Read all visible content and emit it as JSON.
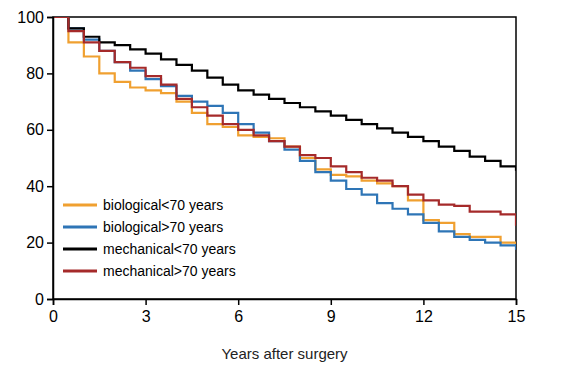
{
  "chart_data": {
    "type": "line",
    "x_label": "Years after surgery",
    "x": [
      0,
      0.5,
      1,
      1.5,
      2,
      2.5,
      3,
      3.5,
      4,
      4.5,
      5,
      5.5,
      6,
      6.5,
      7,
      7.5,
      8,
      8.5,
      9,
      9.5,
      10,
      10.5,
      11,
      11.5,
      12,
      12.5,
      13,
      13.5,
      14,
      14.5,
      15
    ],
    "series": [
      {
        "name": "biological<70 years",
        "color": "#f0a030",
        "values": [
          100,
          91,
          86,
          80,
          77,
          75,
          74,
          73,
          70,
          66,
          62,
          61,
          58,
          57.5,
          57,
          54,
          50,
          46,
          44,
          43.5,
          42,
          41,
          40,
          35,
          28,
          27,
          23,
          22,
          22,
          20,
          19.5
        ]
      },
      {
        "name": "biological>70 years",
        "color": "#2e75b6",
        "values": [
          100,
          96,
          92,
          88,
          84,
          81,
          78,
          75.5,
          72,
          70,
          68.5,
          66,
          62,
          59,
          56,
          53,
          49,
          45,
          42,
          39,
          37,
          34,
          32,
          30,
          27,
          24,
          22,
          21,
          20,
          19,
          17.5
        ]
      },
      {
        "name": "mechanical<70 years",
        "color": "#000000",
        "values": [
          100,
          96,
          93,
          91,
          90,
          88.5,
          87,
          85,
          83,
          81,
          78.5,
          76,
          74,
          72.5,
          71,
          69.5,
          68,
          66.5,
          65,
          63.5,
          62,
          60.5,
          59,
          57.5,
          56,
          54,
          52.5,
          50.5,
          49,
          47,
          45.5
        ]
      },
      {
        "name": "mechanical>70 years",
        "color": "#a52a2a",
        "values": [
          100,
          95,
          91,
          88,
          84,
          82,
          79,
          76,
          71,
          68,
          65,
          62,
          60,
          58,
          56,
          54,
          51,
          50,
          47,
          45,
          43,
          42,
          40,
          37,
          35,
          33.5,
          33,
          31,
          31,
          30,
          26
        ]
      }
    ],
    "xlim": [
      0,
      15
    ],
    "xticks": [
      0,
      3,
      6,
      9,
      12,
      15
    ],
    "ylim": [
      0,
      100
    ],
    "yticks": [
      0,
      20,
      40,
      60,
      80,
      100
    ],
    "line_style": "step",
    "legend": "lower left",
    "grid": false
  }
}
